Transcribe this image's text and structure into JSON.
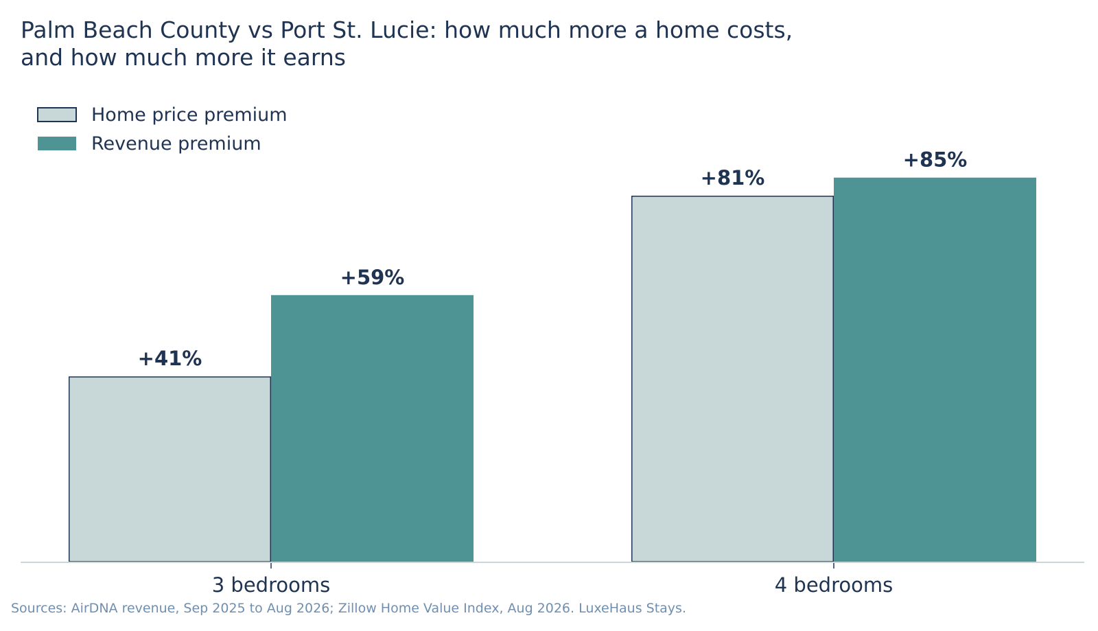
{
  "title_lines": [
    "Palm Beach County vs Port St. Lucie: how much more a home costs,",
    "and how much more it earns"
  ],
  "source": "Sources: AirDNA revenue, Sep 2025 to Aug 2026; Zillow Home Value Index, Aug 2026. LuxeHaus Stays.",
  "chart_data": {
    "type": "bar",
    "categories": [
      "3 bedrooms",
      "4 bedrooms"
    ],
    "series": [
      {
        "name": "Home price premium",
        "values": [
          41,
          81
        ],
        "labels": [
          "+41%",
          "+81%"
        ],
        "color": "#c8d8d8",
        "stroke": "#1f3352"
      },
      {
        "name": "Revenue premium",
        "values": [
          59,
          85
        ],
        "labels": [
          "+59%",
          "+85%"
        ],
        "color": "#4f9494",
        "stroke": "none"
      }
    ],
    "ylim": [
      0,
      90
    ],
    "grid": false,
    "legend": "top-left",
    "text_color": "#1f3352",
    "axis_color": "#c8d8d8"
  }
}
